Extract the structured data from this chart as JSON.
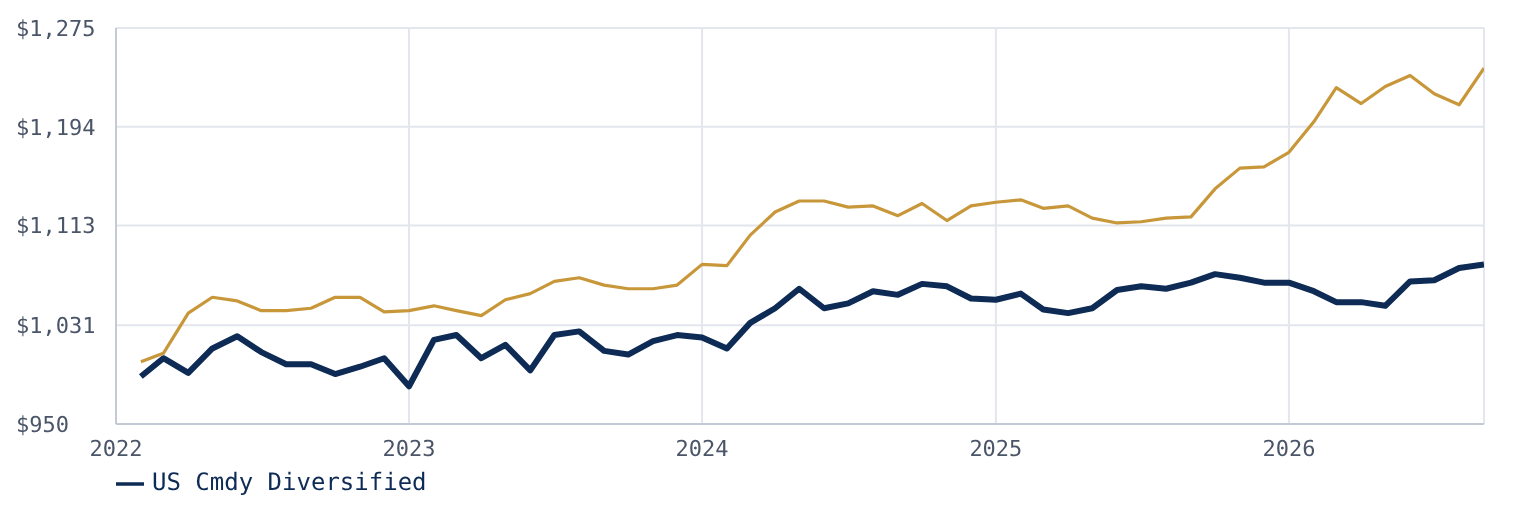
{
  "chart_data": {
    "type": "line",
    "x": [
      "2022-02",
      "2022-03",
      "2022-04",
      "2022-05",
      "2022-06",
      "2022-07",
      "2022-08",
      "2022-09",
      "2022-10",
      "2022-11",
      "2022-12",
      "2023-01",
      "2023-02",
      "2023-03",
      "2023-04",
      "2023-05",
      "2023-06",
      "2023-07",
      "2023-08",
      "2023-09",
      "2023-10",
      "2023-11",
      "2023-12",
      "2024-01",
      "2024-02",
      "2024-03",
      "2024-04",
      "2024-05",
      "2024-06",
      "2024-07",
      "2024-08",
      "2024-09",
      "2024-10",
      "2024-11",
      "2024-12",
      "2025-01",
      "2025-02",
      "2025-03",
      "2025-04",
      "2025-05",
      "2025-06",
      "2025-07",
      "2025-08",
      "2025-09",
      "2025-10",
      "2025-11",
      "2025-12",
      "2026-01",
      "2026-02",
      "2026-03",
      "2026-04",
      "2026-05",
      "2026-06",
      "2026-07",
      "2026-08",
      "2026-09"
    ],
    "series": [
      {
        "name": "US Cmdy Diversified",
        "color": "#0d2b55",
        "values": [
          989,
          1004,
          992,
          1012,
          1022,
          1009,
          999,
          999,
          991,
          997,
          1004,
          981,
          1019,
          1023,
          1004,
          1015,
          994,
          1023,
          1026,
          1010,
          1007,
          1018,
          1023,
          1021,
          1012,
          1033,
          1045,
          1061,
          1045,
          1049,
          1059,
          1056,
          1065,
          1063,
          1053,
          1052,
          1057,
          1044,
          1041,
          1045,
          1060,
          1063,
          1061,
          1066,
          1073,
          1070,
          1066,
          1066,
          1059,
          1050,
          1050,
          1047,
          1067,
          1068,
          1078,
          1081
        ]
      },
      {
        "color": "#c8973a",
        "values": [
          1001,
          1008,
          1041,
          1054,
          1051,
          1043,
          1043,
          1045,
          1054,
          1054,
          1042,
          1043,
          1047,
          1043,
          1039,
          1052,
          1057,
          1067,
          1070,
          1064,
          1061,
          1061,
          1064,
          1081,
          1080,
          1105,
          1124,
          1133,
          1133,
          1128,
          1129,
          1121,
          1131,
          1117,
          1129,
          1132,
          1134,
          1127,
          1129,
          1119,
          1115,
          1116,
          1119,
          1120,
          1143,
          1160,
          1161,
          1173,
          1198,
          1226,
          1213,
          1227,
          1236,
          1221,
          1212,
          1242
        ]
      }
    ],
    "xlim": [
      "2022-01",
      "2026-09"
    ],
    "xticks": [
      {
        "value": "2022-01",
        "label": "2022"
      },
      {
        "value": "2023-01",
        "label": "2023"
      },
      {
        "value": "2024-01",
        "label": "2024"
      },
      {
        "value": "2025-01",
        "label": "2025"
      },
      {
        "value": "2026-01",
        "label": "2026"
      }
    ],
    "ylim": [
      950,
      1275
    ],
    "yticks": [
      {
        "value": 950,
        "label": "$950"
      },
      {
        "value": 1031,
        "label": "$1,031"
      },
      {
        "value": 1113,
        "label": "$1,113"
      },
      {
        "value": 1194,
        "label": "$1,194"
      },
      {
        "value": 1275,
        "label": "$1,275"
      }
    ],
    "grid": true,
    "legend": "bottom",
    "marker": "none",
    "line_style": "solid"
  }
}
